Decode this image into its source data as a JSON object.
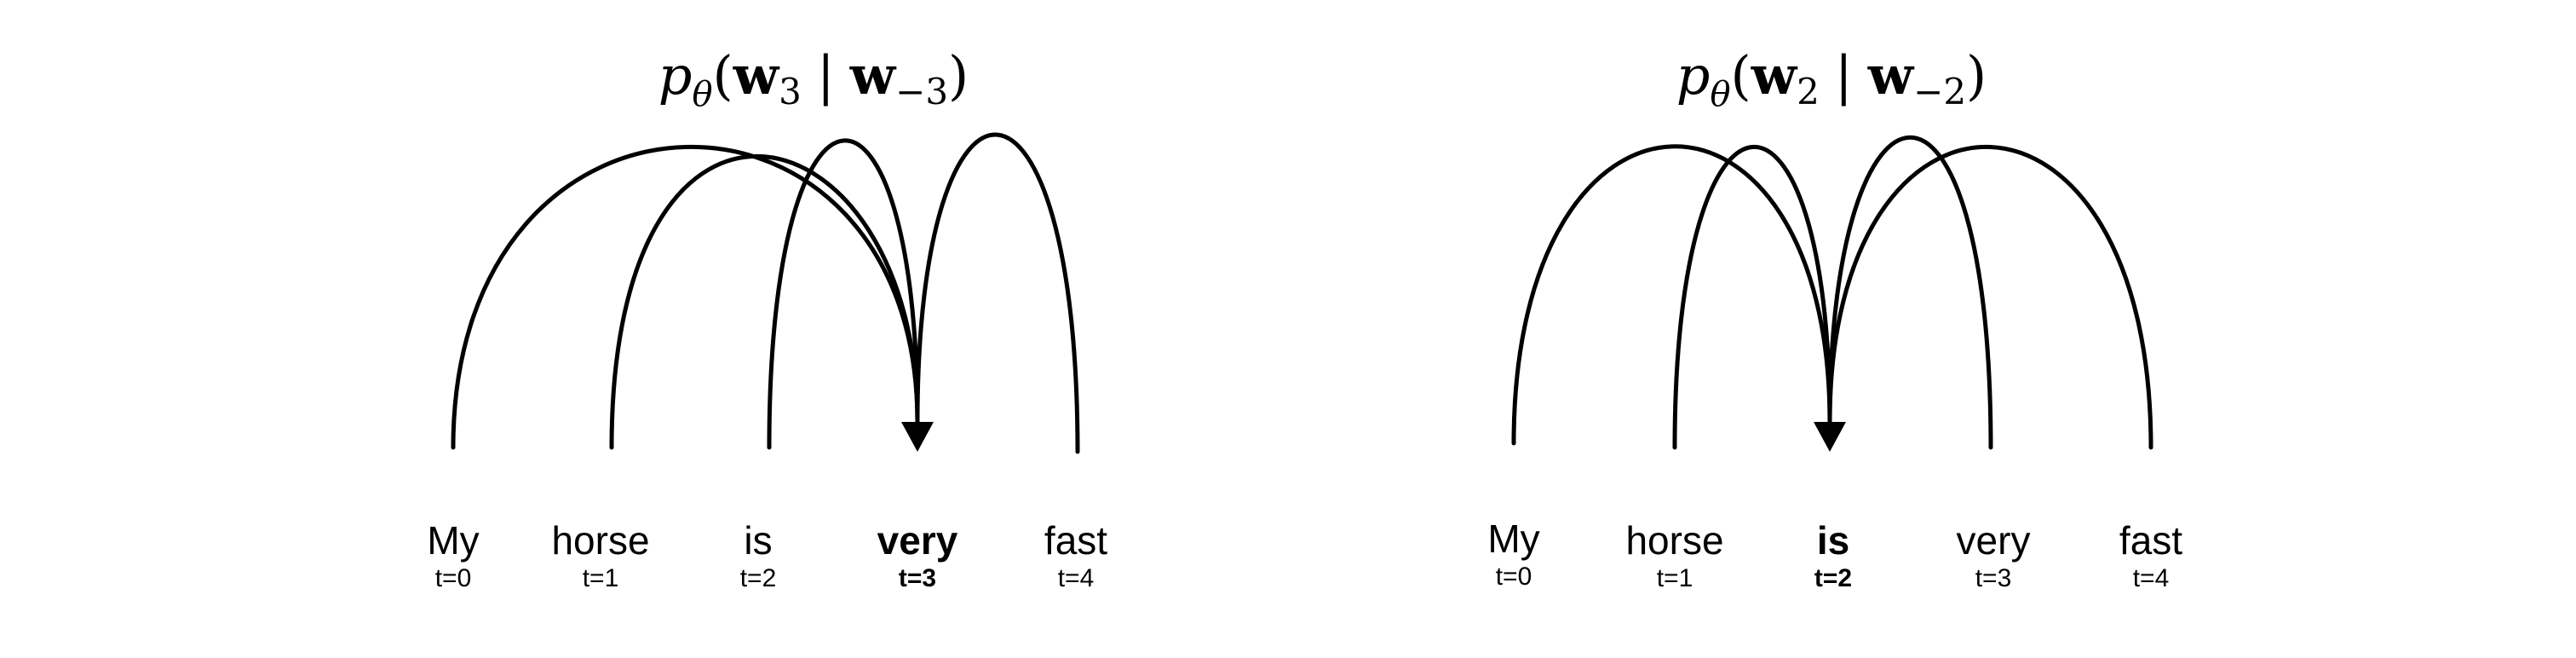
{
  "panels": [
    {
      "formula": {
        "p": "p",
        "theta": "θ",
        "w": "w",
        "sub": "3",
        "bar": "|",
        "negsub": "−3",
        "lparen": "(",
        "rparen": ")"
      },
      "target_index": 3,
      "tokens": [
        {
          "word": "My",
          "t": "t=0"
        },
        {
          "word": "horse",
          "t": "t=1"
        },
        {
          "word": "is",
          "t": "t=2"
        },
        {
          "word": "very",
          "t": "t=3"
        },
        {
          "word": "fast",
          "t": "t=4"
        }
      ]
    },
    {
      "formula": {
        "p": "p",
        "theta": "θ",
        "w": "w",
        "sub": "2",
        "bar": "|",
        "negsub": "−2",
        "lparen": "(",
        "rparen": ")"
      },
      "target_index": 2,
      "tokens": [
        {
          "word": "My",
          "t": "t=0"
        },
        {
          "word": "horse",
          "t": "t=1"
        },
        {
          "word": "is",
          "t": "t=2"
        },
        {
          "word": "very",
          "t": "t=3"
        },
        {
          "word": "fast",
          "t": "t=4"
        }
      ]
    }
  ],
  "colors": {
    "ink": "#000000",
    "background": "#ffffff"
  }
}
